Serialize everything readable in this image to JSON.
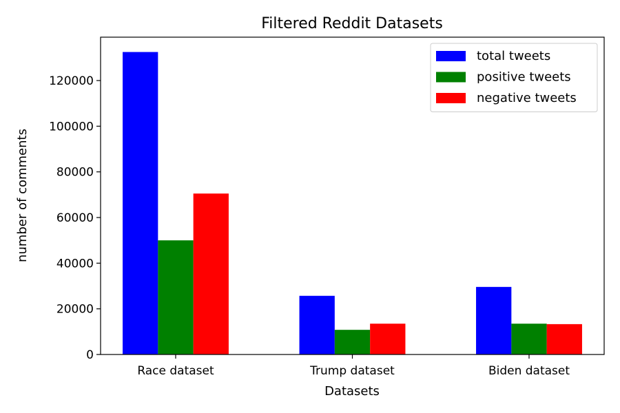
{
  "chart_data": {
    "type": "bar",
    "title": "Filtered Reddit Datasets",
    "xlabel": "Datasets",
    "ylabel": "number of comments",
    "categories": [
      "Race dataset",
      "Trump dataset",
      "Biden dataset"
    ],
    "series": [
      {
        "name": "total tweets",
        "color": "#0000ff",
        "values": [
          132500,
          25700,
          29600
        ]
      },
      {
        "name": "positive tweets",
        "color": "#008000",
        "values": [
          50000,
          10800,
          13500
        ]
      },
      {
        "name": "negative tweets",
        "color": "#ff0000",
        "values": [
          70500,
          13500,
          13300
        ]
      }
    ],
    "ylim": [
      0,
      139000
    ],
    "yticks": [
      0,
      20000,
      40000,
      60000,
      80000,
      100000,
      120000
    ],
    "ytick_labels": [
      "0",
      "20000",
      "40000",
      "60000",
      "80000",
      "100000",
      "120000"
    ],
    "legend_position": "top-right",
    "grid": false
  }
}
